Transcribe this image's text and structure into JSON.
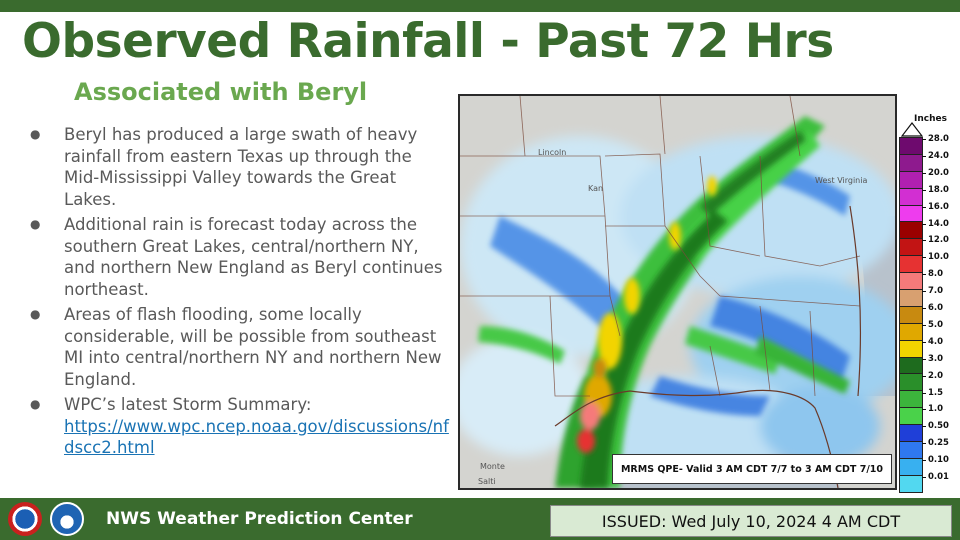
{
  "header": {
    "title": "Observed Rainfall - Past 72 Hrs",
    "subtitle": "Associated with Beryl"
  },
  "bullets": [
    {
      "text": "Beryl has produced a large swath of heavy rainfall from eastern Texas up through the Mid-Mississippi Valley towards the Great Lakes."
    },
    {
      "text": "Additional rain is forecast today across the southern Great Lakes, central/northern NY, and northern New England as Beryl continues northeast."
    },
    {
      "text": "Areas of flash flooding, some locally considerable, will be possible from southeast MI into central/northern NY and northern New England."
    },
    {
      "text": "WPC’s latest Storm Summary:",
      "link": "https://www.wpc.ncep.noaa.gov/discussions/nfdscc2.html"
    }
  ],
  "map": {
    "caption": "MRMS QPE- Valid 3 AM CDT 7/7 to 3 AM CDT 7/10",
    "place_labels": [
      "Lincoln",
      "Kan",
      "West Virginia",
      "Monte",
      "Salti"
    ]
  },
  "legend": {
    "unit": "Inches",
    "ticks": [
      "28.0",
      "24.0",
      "20.0",
      "18.0",
      "16.0",
      "14.0",
      "12.0",
      "10.0",
      "8.0",
      "7.0",
      "6.0",
      "5.0",
      "4.0",
      "3.0",
      "2.0",
      "1.5",
      "1.0",
      "0.50",
      "0.25",
      "0.10",
      "0.01"
    ],
    "colors": [
      "#6e0a6e",
      "#8e1a8e",
      "#b020b0",
      "#d22fd2",
      "#ee3cee",
      "#9a0000",
      "#c21414",
      "#e63232",
      "#f57a7a",
      "#d8a070",
      "#c88a10",
      "#e0a800",
      "#f2d400",
      "#1e6b1e",
      "#2a8f2a",
      "#3cb43c",
      "#4ad24a",
      "#1f3fd8",
      "#2f78f0",
      "#38b0f0",
      "#52d8f0"
    ]
  },
  "footer": {
    "org": "NWS Weather Prediction Center",
    "issued": "ISSUED: Wed July 10, 2024 4 AM CDT"
  },
  "logos": [
    "nws-logo",
    "noaa-logo"
  ]
}
